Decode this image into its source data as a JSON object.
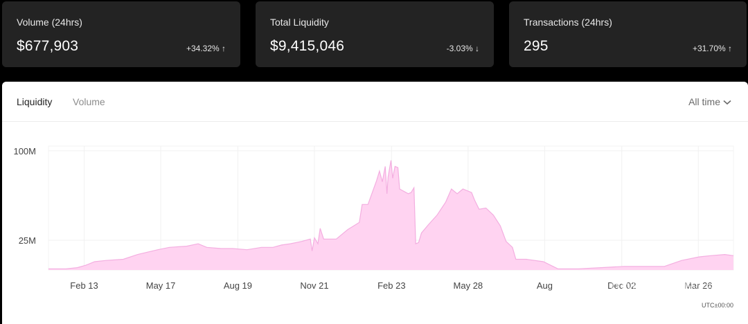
{
  "stats": [
    {
      "label": "Volume (24hrs)",
      "value": "$677,903",
      "change": "+34.32% ↑"
    },
    {
      "label": "Total Liquidity",
      "value": "$9,415,046",
      "change": "-3.03% ↓"
    },
    {
      "label": "Transactions (24hrs)",
      "value": "295",
      "change": "+31.70% ↑"
    }
  ],
  "tabs": {
    "liquidity": "Liquidity",
    "volume": "Volume"
  },
  "range": {
    "selected": "All time"
  },
  "timezone": "UTC±00:00",
  "watermark": "DappRadar榜单",
  "chart_data": {
    "type": "area",
    "series_color": "#ffd3f1",
    "line_color": "#f3aee0",
    "y_ticks": [
      {
        "label": "100M",
        "value": 100
      },
      {
        "label": "25M",
        "value": 25
      }
    ],
    "y_range": [
      0,
      104
    ],
    "x_ticks": [
      "Feb 13",
      "May 17",
      "Aug 19",
      "Nov 21",
      "Feb 23",
      "May 28",
      "Aug",
      "Dec 02",
      "Mar 26"
    ],
    "x_tick_positions": [
      0.062,
      0.195,
      0.329,
      0.462,
      0.596,
      0.729,
      0.862,
      0.996,
      1.129
    ],
    "points": [
      [
        0.0,
        1
      ],
      [
        0.03,
        1
      ],
      [
        0.05,
        2
      ],
      [
        0.065,
        4
      ],
      [
        0.08,
        7
      ],
      [
        0.1,
        8
      ],
      [
        0.13,
        9
      ],
      [
        0.155,
        13
      ],
      [
        0.19,
        17
      ],
      [
        0.21,
        19
      ],
      [
        0.24,
        20
      ],
      [
        0.26,
        22
      ],
      [
        0.275,
        19
      ],
      [
        0.3,
        18
      ],
      [
        0.32,
        18
      ],
      [
        0.345,
        17
      ],
      [
        0.37,
        19
      ],
      [
        0.39,
        19
      ],
      [
        0.405,
        21
      ],
      [
        0.42,
        22
      ],
      [
        0.44,
        24
      ],
      [
        0.455,
        26
      ],
      [
        0.458,
        16
      ],
      [
        0.462,
        27
      ],
      [
        0.468,
        22
      ],
      [
        0.472,
        35
      ],
      [
        0.478,
        26
      ],
      [
        0.5,
        26
      ],
      [
        0.52,
        34
      ],
      [
        0.54,
        40
      ],
      [
        0.545,
        55
      ],
      [
        0.555,
        55
      ],
      [
        0.57,
        75
      ],
      [
        0.575,
        83
      ],
      [
        0.58,
        74
      ],
      [
        0.585,
        87
      ],
      [
        0.588,
        64
      ],
      [
        0.59,
        78
      ],
      [
        0.595,
        92
      ],
      [
        0.598,
        77
      ],
      [
        0.602,
        87
      ],
      [
        0.607,
        86
      ],
      [
        0.61,
        68
      ],
      [
        0.625,
        64
      ],
      [
        0.63,
        65
      ],
      [
        0.635,
        69
      ],
      [
        0.638,
        22
      ],
      [
        0.643,
        23
      ],
      [
        0.648,
        31
      ],
      [
        0.66,
        38
      ],
      [
        0.675,
        46
      ],
      [
        0.69,
        57
      ],
      [
        0.7,
        68
      ],
      [
        0.71,
        64
      ],
      [
        0.72,
        68
      ],
      [
        0.735,
        65
      ],
      [
        0.74,
        59
      ],
      [
        0.748,
        51
      ],
      [
        0.76,
        52
      ],
      [
        0.773,
        46
      ],
      [
        0.785,
        37
      ],
      [
        0.795,
        24
      ],
      [
        0.806,
        19
      ],
      [
        0.812,
        9
      ],
      [
        0.83,
        9
      ],
      [
        0.86,
        7
      ],
      [
        0.885,
        1
      ],
      [
        0.92,
        1
      ],
      [
        0.96,
        2
      ],
      [
        1.0,
        3
      ],
      [
        1.04,
        3
      ],
      [
        1.07,
        3
      ],
      [
        1.1,
        8
      ],
      [
        1.13,
        11
      ],
      [
        1.15,
        12
      ],
      [
        1.175,
        13
      ],
      [
        1.19,
        12
      ]
    ]
  }
}
